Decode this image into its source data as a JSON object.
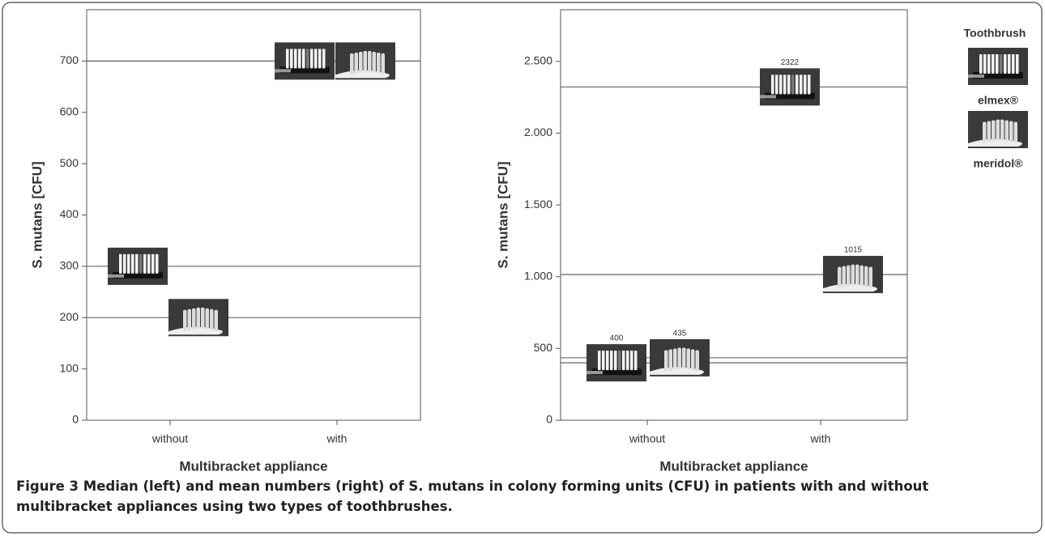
{
  "chart_data": [
    {
      "type": "dot",
      "y_label": "S. mutans [CFU]",
      "x_label": "Multibracket appliance",
      "categories": [
        "without",
        "with"
      ],
      "series": [
        {
          "name": "elmex®",
          "values": [
            300,
            700
          ]
        },
        {
          "name": "meridol®",
          "values": [
            200,
            700
          ]
        }
      ],
      "ylim": [
        0,
        800
      ],
      "yticks": [
        0,
        100,
        200,
        300,
        400,
        500,
        600,
        700
      ],
      "line_color": "#555555"
    },
    {
      "type": "dot",
      "y_label": "S. mutans [CFU]",
      "x_label": "Multibracket appliance",
      "categories": [
        "without",
        "with"
      ],
      "series": [
        {
          "name": "elmex®",
          "values": [
            400,
            2322
          ]
        },
        {
          "name": "meridol®",
          "values": [
            435,
            1015
          ]
        }
      ],
      "show_value_labels": true,
      "ylim": [
        0,
        2860
      ],
      "yticks": [
        0,
        500,
        {
          "value": 1000,
          "label": "1.000"
        },
        {
          "value": 1500,
          "label": "1.500"
        },
        {
          "value": 2000,
          "label": "2.000"
        },
        {
          "value": 2500,
          "label": "2.500"
        }
      ],
      "line_color": "#555555"
    }
  ],
  "legend": {
    "title": "Toothbrush"
  },
  "caption": {
    "label": "Figure 3",
    "text": "Median (left) and mean numbers (right) of S. mutans in colony forming units (CFU) in patients with and without multibracket appliances using two types of toothbrushes."
  }
}
